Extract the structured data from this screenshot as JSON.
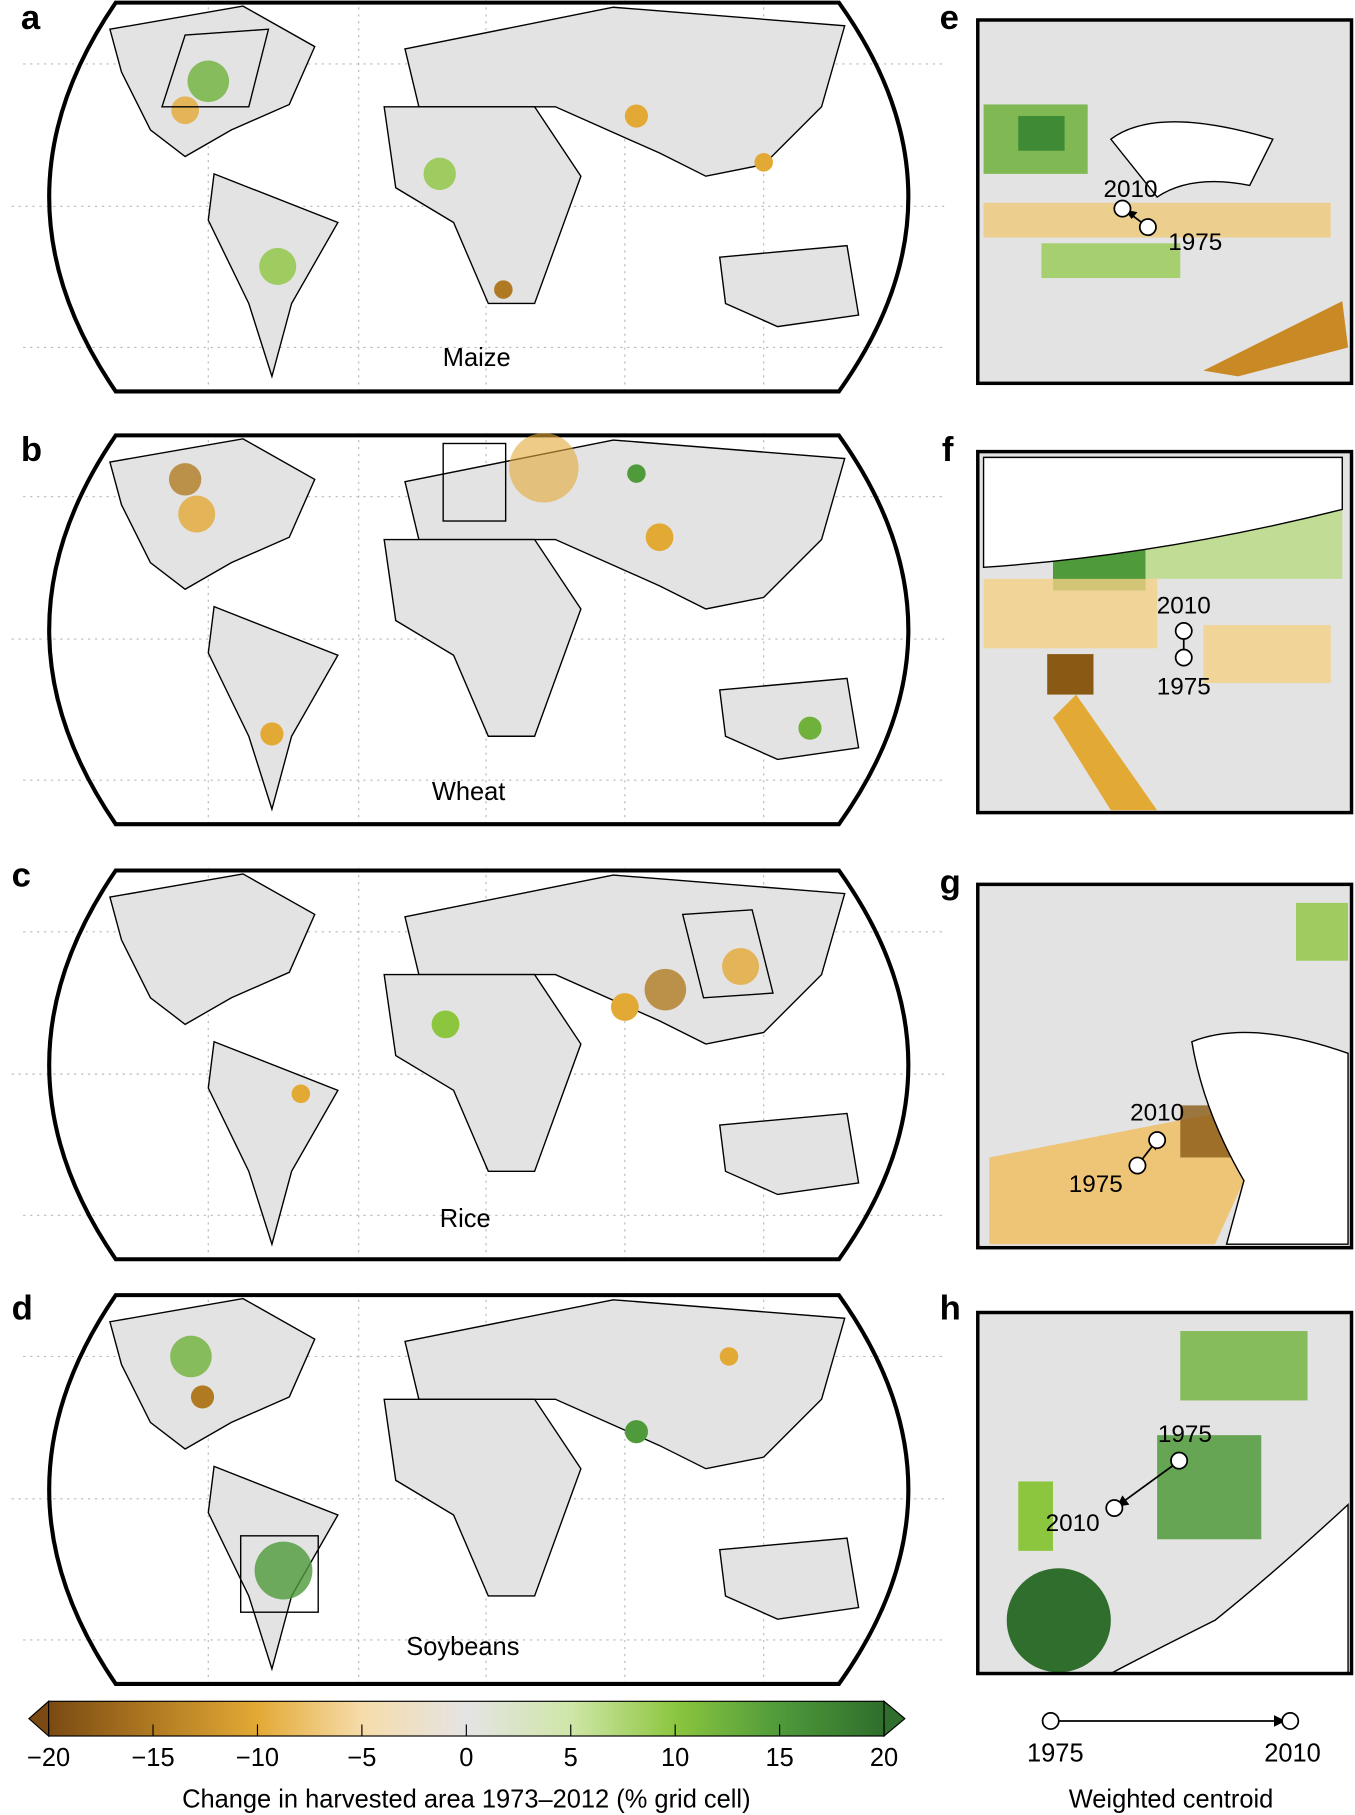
{
  "panels": {
    "a": {
      "letter": "a",
      "crop": "Maize"
    },
    "b": {
      "letter": "b",
      "crop": "Wheat"
    },
    "c": {
      "letter": "c",
      "crop": "Rice"
    },
    "d": {
      "letter": "d",
      "crop": "Soybeans"
    }
  },
  "insets": {
    "e": {
      "letter": "e",
      "start": "1975",
      "end": "2010"
    },
    "f": {
      "letter": "f",
      "start": "1975",
      "end": "2010"
    },
    "g": {
      "letter": "g",
      "start": "1975",
      "end": "2010"
    },
    "h": {
      "letter": "h",
      "start": "1975",
      "end": "2010"
    }
  },
  "colorbar": {
    "ticks": [
      "−20",
      "−15",
      "−10",
      "−5",
      "0",
      "5",
      "10",
      "15",
      "20"
    ],
    "title": "Change in harvested area 1973–2012 (% grid cell)",
    "colors": [
      "#7a4a12",
      "#b07a22",
      "#e3a935",
      "#f6dcaa",
      "#e4e4e4",
      "#cfe6a8",
      "#8cc63f",
      "#4f9a3a",
      "#2f6e2c"
    ]
  },
  "centroid_legend": {
    "start": "1975",
    "end": "2010",
    "title": "Weighted centroid"
  }
}
